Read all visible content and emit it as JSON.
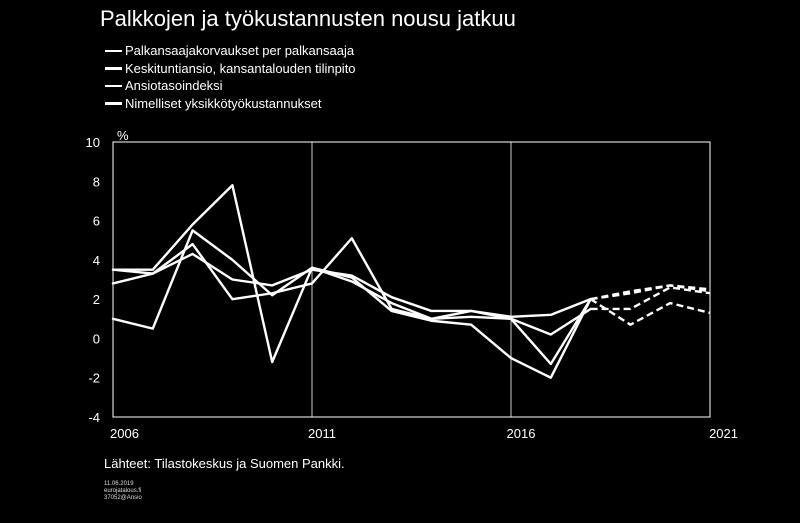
{
  "header": {
    "title": "Palkkojen ja työkustannusten nousu jatkuu"
  },
  "footer": {
    "source": "Lähteet: Tilastokeskus ja Suomen Pankki.",
    "date": "11.06.2019",
    "site": "eurojatalous.fi",
    "code": "37052@Ansio"
  },
  "colors": {
    "background": "#000000",
    "lines": "#ffffff"
  },
  "chart_data": {
    "type": "line",
    "title": "Palkkojen ja työkustannusten nousu jatkuu",
    "ylabel": "%",
    "xlim": [
      2006,
      2021
    ],
    "ylim": [
      -4,
      10
    ],
    "yticks": [
      -4,
      -2,
      0,
      2,
      4,
      6,
      8,
      10
    ],
    "xticks": [
      "2006",
      "2011",
      "2016",
      "2021"
    ],
    "grid": "vertical at 2011 and 2016",
    "legend_position": "top-left",
    "forecast_from": 2018,
    "forecast_style": "dashed",
    "x": [
      2006,
      2007,
      2008,
      2009,
      2010,
      2011,
      2012,
      2013,
      2014,
      2015,
      2016,
      2017,
      2018,
      2019,
      2020,
      2021
    ],
    "series": [
      {
        "name": "Palkansaajakorvaukset per palkansaaja",
        "values": [
          3.5,
          3.5,
          5.8,
          7.8,
          -1.2,
          3.6,
          2.9,
          1.8,
          1.0,
          1.4,
          1.0,
          0.2,
          1.5,
          1.5,
          2.6,
          2.3
        ]
      },
      {
        "name": "Keskituntiansio, kansantalouden tilinpito",
        "values": [
          1.0,
          0.5,
          5.5,
          4.0,
          2.2,
          3.6,
          3.1,
          1.4,
          0.9,
          0.7,
          -1.0,
          -2.0,
          2.0,
          0.7,
          1.8,
          1.3
        ]
      },
      {
        "name": "Ansiotasoindeksi",
        "values": [
          2.8,
          3.3,
          4.3,
          3.0,
          2.7,
          3.5,
          3.2,
          2.1,
          1.4,
          1.4,
          1.1,
          1.2,
          2.0,
          2.4,
          2.7,
          2.5
        ]
      },
      {
        "name": "Nimelliset yksikkötyökustannukset",
        "values": [
          3.5,
          3.3,
          4.8,
          2.0,
          2.3,
          2.8,
          5.1,
          1.5,
          1.0,
          1.1,
          1.0,
          -1.3,
          2.0,
          2.3,
          2.7,
          2.4
        ]
      }
    ]
  }
}
